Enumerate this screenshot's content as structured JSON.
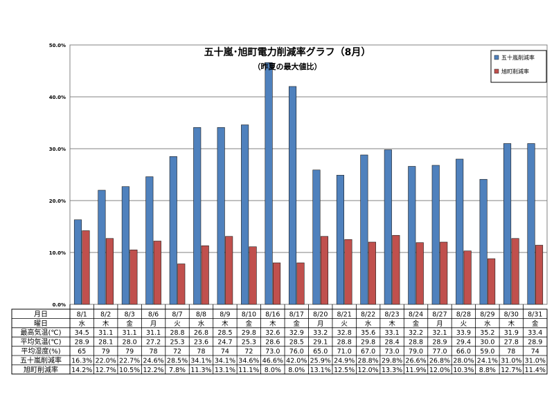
{
  "chart_data": {
    "type": "bar",
    "title": "五十嵐･旭町電力削減率グラフ（8月）",
    "subtitle": "（昨夏の最大値比）",
    "ylim": [
      0,
      50
    ],
    "yticks": [
      "0.0%",
      "10.0%",
      "20.0%",
      "30.0%",
      "40.0%",
      "50.0%"
    ],
    "grid": true,
    "legend_position": "top-right",
    "categories": [
      "8/1",
      "8/2",
      "8/3",
      "8/6",
      "8/7",
      "8/8",
      "8/9",
      "8/10",
      "8/16",
      "8/17",
      "8/20",
      "8/21",
      "8/22",
      "8/23",
      "8/24",
      "8/27",
      "8/28",
      "8/29",
      "8/30",
      "8/31"
    ],
    "series": [
      {
        "name": "五十嵐削減率",
        "color": "#4F81BD",
        "values": [
          16.3,
          22.0,
          22.7,
          24.6,
          28.5,
          34.1,
          34.1,
          34.6,
          46.6,
          42.0,
          25.9,
          24.9,
          28.8,
          29.8,
          26.6,
          26.8,
          28.0,
          24.1,
          31.0,
          31.0
        ]
      },
      {
        "name": "旭町削減率",
        "color": "#C0504D",
        "values": [
          14.2,
          12.7,
          10.5,
          12.2,
          7.8,
          11.3,
          13.1,
          11.1,
          8.0,
          8.0,
          13.1,
          12.5,
          12.0,
          13.3,
          11.9,
          12.0,
          10.3,
          8.8,
          12.7,
          11.4
        ]
      }
    ]
  },
  "table": {
    "rows": [
      {
        "label": "月日",
        "cells": [
          "8/1",
          "8/2",
          "8/3",
          "8/6",
          "8/7",
          "8/8",
          "8/9",
          "8/10",
          "8/16",
          "8/17",
          "8/20",
          "8/21",
          "8/22",
          "8/23",
          "8/24",
          "8/27",
          "8/28",
          "8/29",
          "8/30",
          "8/31"
        ]
      },
      {
        "label": "曜日",
        "cells": [
          "水",
          "木",
          "金",
          "月",
          "火",
          "水",
          "木",
          "金",
          "木",
          "金",
          "月",
          "火",
          "水",
          "木",
          "金",
          "月",
          "火",
          "水",
          "木",
          "金"
        ]
      },
      {
        "label": "最高気温(℃)",
        "cells": [
          "34.5",
          "31.1",
          "31.1",
          "31.1",
          "28.8",
          "26.8",
          "28.5",
          "29.8",
          "32.6",
          "32.9",
          "33.2",
          "32.8",
          "35.6",
          "33.1",
          "32.2",
          "32.1",
          "33.9",
          "35.2",
          "31.9",
          "33.4"
        ]
      },
      {
        "label": "平均気温(℃)",
        "cells": [
          "28.9",
          "28.1",
          "28.0",
          "27.2",
          "25.3",
          "23.6",
          "24.7",
          "25.3",
          "28.6",
          "28.5",
          "29.1",
          "28.8",
          "29.8",
          "28.4",
          "28.8",
          "28.9",
          "29.4",
          "30.0",
          "27.8",
          "28.9"
        ]
      },
      {
        "label": "平均湿度(%)",
        "cells": [
          "65",
          "79",
          "79",
          "78",
          "72",
          "78",
          "74",
          "72",
          "73.0",
          "76.0",
          "65.0",
          "71.0",
          "67.0",
          "73.0",
          "79.0",
          "77.0",
          "66.0",
          "59.0",
          "78",
          "74"
        ]
      },
      {
        "label": "五十嵐削減率",
        "cells": [
          "16.3%",
          "22.0%",
          "22.7%",
          "24.6%",
          "28.5%",
          "34.1%",
          "34.1%",
          "34.6%",
          "46.6%",
          "42.0%",
          "25.9%",
          "24.9%",
          "28.8%",
          "29.8%",
          "26.6%",
          "26.8%",
          "28.0%",
          "24.1%",
          "31.0%",
          "31.0%"
        ]
      },
      {
        "label": "旭町削減率",
        "cells": [
          "14.2%",
          "12.7%",
          "10.5%",
          "12.2%",
          "7.8%",
          "11.3%",
          "13.1%",
          "11.1%",
          "8.0%",
          "8.0%",
          "13.1%",
          "12.5%",
          "12.0%",
          "13.3%",
          "11.9%",
          "12.0%",
          "10.3%",
          "8.8%",
          "12.7%",
          "11.4%"
        ]
      }
    ]
  }
}
